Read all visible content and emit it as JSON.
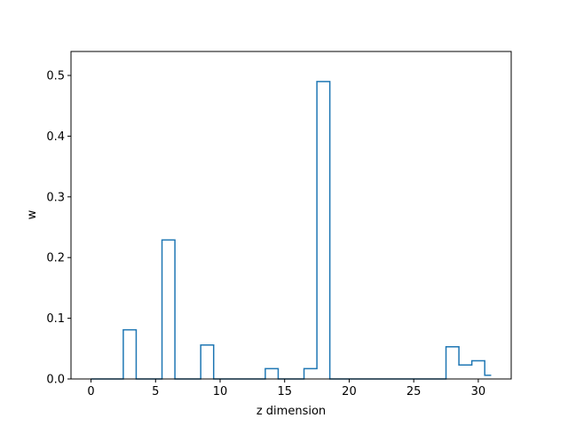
{
  "chart_data": {
    "type": "line",
    "drawstyle": "steps-mid",
    "title": "",
    "xlabel": "z dimension",
    "ylabel": "w",
    "xlim": [
      -1.55,
      32.55
    ],
    "ylim": [
      0,
      0.5395
    ],
    "xticks": [
      0,
      5,
      10,
      15,
      20,
      25,
      30
    ],
    "yticks": [
      0.0,
      0.1,
      0.2,
      0.3,
      0.4,
      0.5
    ],
    "ytick_labels": [
      "0.0",
      "0.1",
      "0.2",
      "0.3",
      "0.4",
      "0.5"
    ],
    "grid": false,
    "series_color": "#1f77b4",
    "x": [
      0,
      1,
      2,
      3,
      4,
      5,
      6,
      7,
      8,
      9,
      10,
      11,
      12,
      13,
      14,
      15,
      16,
      17,
      18,
      19,
      20,
      21,
      22,
      23,
      24,
      25,
      26,
      27,
      28,
      29,
      30,
      31
    ],
    "y": [
      0,
      0,
      0,
      0.081,
      0,
      0,
      0.229,
      0,
      0,
      0.056,
      0,
      0,
      0,
      0,
      0.017,
      0,
      0,
      0.017,
      0.49,
      0,
      0,
      0,
      0,
      0,
      0,
      0,
      0,
      0,
      0.053,
      0.023,
      0.03,
      0.006
    ]
  }
}
